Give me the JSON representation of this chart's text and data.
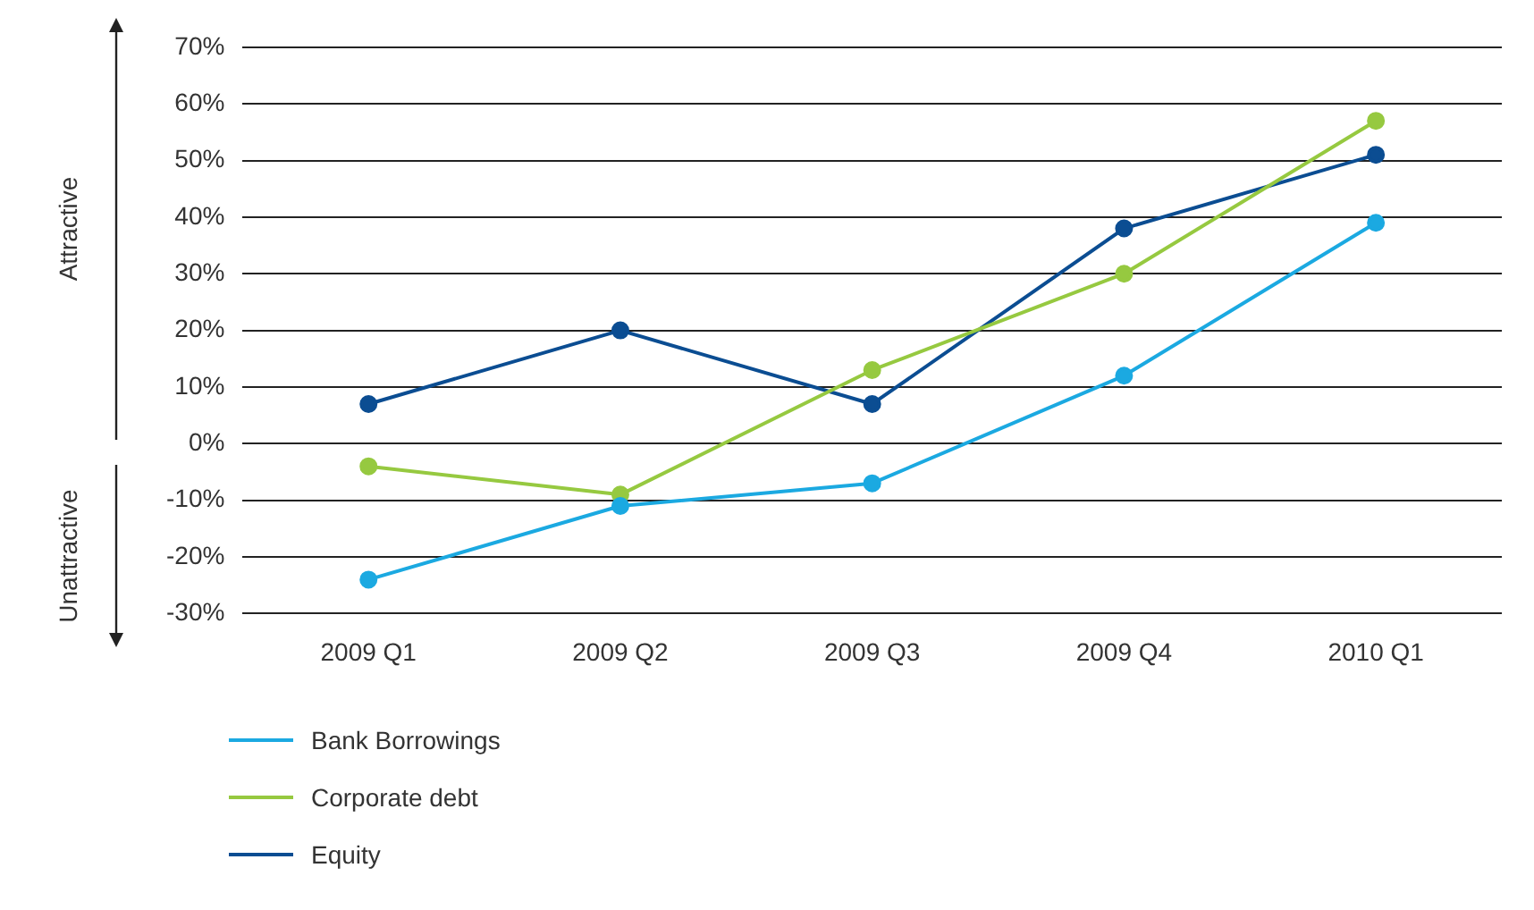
{
  "chart_data": {
    "type": "line",
    "categories": [
      "2009 Q1",
      "2009 Q2",
      "2009 Q3",
      "2009 Q4",
      "2010 Q1"
    ],
    "series": [
      {
        "name": "Bank Borrowings",
        "color": "#1ba9e1",
        "values": [
          -24,
          -11,
          -7,
          12,
          39
        ]
      },
      {
        "name": "Corporate debt",
        "color": "#96c940",
        "values": [
          -4,
          -9,
          13,
          30,
          57
        ]
      },
      {
        "name": "Equity",
        "color": "#0b4d92",
        "values": [
          7,
          20,
          7,
          38,
          51
        ]
      }
    ],
    "ylim": [
      -30,
      70
    ],
    "yticks": [
      {
        "value": -30,
        "label": "-30%"
      },
      {
        "value": -20,
        "label": "-20%"
      },
      {
        "value": -10,
        "label": "-10%"
      },
      {
        "value": 0,
        "label": "0%"
      },
      {
        "value": 10,
        "label": "10%"
      },
      {
        "value": 20,
        "label": "20%"
      },
      {
        "value": 30,
        "label": "30%"
      },
      {
        "value": 40,
        "label": "40%"
      },
      {
        "value": 50,
        "label": "50%"
      },
      {
        "value": 60,
        "label": "60%"
      },
      {
        "value": 70,
        "label": "70%"
      }
    ],
    "grid": "y",
    "legend": "bottom left",
    "marker": "circle",
    "line_style": "solid",
    "annotations": [
      "Attractive",
      "Unattractive"
    ]
  }
}
